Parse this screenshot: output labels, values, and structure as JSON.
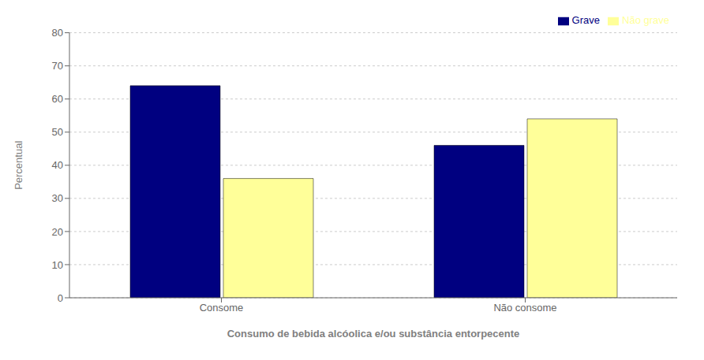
{
  "chart_data": {
    "type": "bar",
    "categories": [
      "Consome",
      "Não consome"
    ],
    "series": [
      {
        "name": "Grave",
        "values": [
          64,
          46
        ],
        "color": "#000080"
      },
      {
        "name": "Não grave",
        "values": [
          36,
          54
        ],
        "color": "#FFFF99"
      }
    ],
    "xlabel": "Consumo de bebida alcóolica e/ou substância entorpecente",
    "ylabel": "Percentual",
    "ylim": [
      0,
      80
    ],
    "yticks": [
      0,
      10,
      20,
      30,
      40,
      50,
      60,
      70,
      80
    ],
    "grid": true,
    "legend": "upper right"
  }
}
